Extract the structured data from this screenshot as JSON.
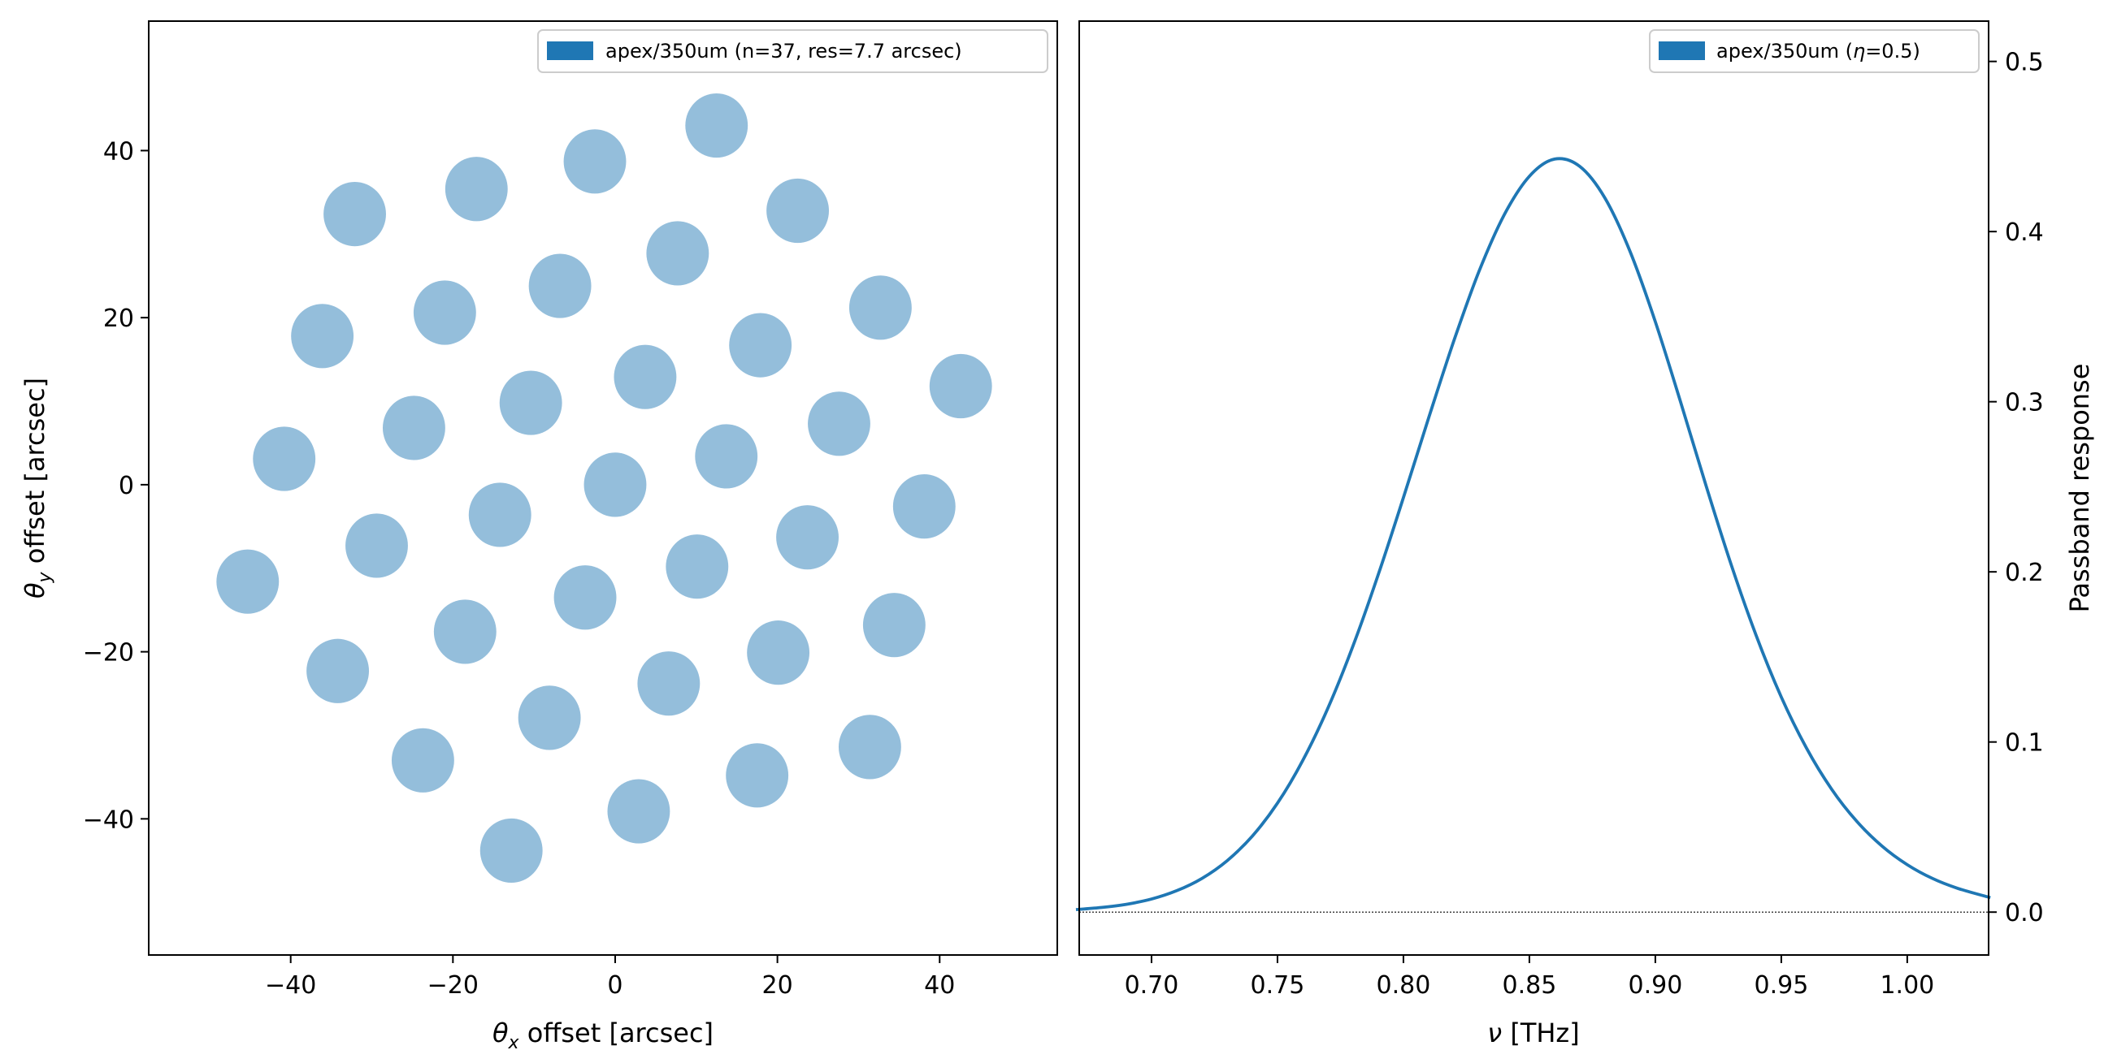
{
  "colors": {
    "series": "#1f77b4",
    "detector_fill": "#1f77b4",
    "detector_alpha": 0.48,
    "frame": "#000000"
  },
  "chart_data": [
    {
      "type": "scatter",
      "xlabel_prefix": "θ",
      "xlabel_sub": "x",
      "xlabel_suffix": " offset [arcsec]",
      "ylabel_prefix": "θ",
      "ylabel_sub": "y",
      "ylabel_suffix": " offset [arcsec]",
      "xlim": [
        -57.5,
        54.5
      ],
      "ylim": [
        -56.3,
        55.5
      ],
      "xticks": [
        -40,
        -20,
        0,
        20,
        40
      ],
      "yticks": [
        -40,
        -20,
        0,
        20,
        40
      ],
      "xtick_labels": [
        "−40",
        "−20",
        "0",
        "20",
        "40"
      ],
      "ytick_labels": [
        "−40",
        "−20",
        "0",
        "20",
        "40"
      ],
      "marker_diameter_arcsec": 7.7,
      "legend": {
        "label": "apex/350um (n=37, res=7.7 arcsec)",
        "placement": "top-right"
      },
      "points": [
        [
          12.5,
          43.0
        ],
        [
          -2.5,
          38.7
        ],
        [
          -17.1,
          35.4
        ],
        [
          -32.1,
          32.4
        ],
        [
          22.5,
          32.8
        ],
        [
          7.7,
          27.7
        ],
        [
          -6.8,
          23.8
        ],
        [
          -21.0,
          20.6
        ],
        [
          -36.1,
          17.8
        ],
        [
          32.7,
          21.2
        ],
        [
          17.9,
          16.7
        ],
        [
          3.7,
          12.9
        ],
        [
          -10.4,
          9.8
        ],
        [
          -24.8,
          6.8
        ],
        [
          -40.8,
          3.1
        ],
        [
          42.6,
          11.8
        ],
        [
          27.6,
          7.3
        ],
        [
          13.7,
          3.4
        ],
        [
          0.0,
          0.0
        ],
        [
          -14.2,
          -3.6
        ],
        [
          -29.4,
          -7.3
        ],
        [
          -45.3,
          -11.6
        ],
        [
          38.1,
          -2.6
        ],
        [
          23.7,
          -6.3
        ],
        [
          10.1,
          -9.8
        ],
        [
          -3.7,
          -13.5
        ],
        [
          -18.5,
          -17.6
        ],
        [
          -34.2,
          -22.3
        ],
        [
          34.4,
          -16.8
        ],
        [
          20.1,
          -20.1
        ],
        [
          6.6,
          -23.8
        ],
        [
          -8.1,
          -27.9
        ],
        [
          -23.7,
          -33.0
        ],
        [
          31.4,
          -31.4
        ],
        [
          17.5,
          -34.8
        ],
        [
          2.9,
          -39.1
        ],
        [
          -12.8,
          -43.8
        ]
      ]
    },
    {
      "type": "line",
      "xlabel_prefix": "ν",
      "xlabel_suffix": " [THz]",
      "ylabel": "Passband response",
      "xlim": [
        0.6713,
        1.0323
      ],
      "ylim": [
        -0.0252,
        0.5237
      ],
      "xticks": [
        0.7,
        0.75,
        0.8,
        0.85,
        0.9,
        0.95,
        1.0
      ],
      "xtick_labels": [
        "0.70",
        "0.75",
        "0.80",
        "0.85",
        "0.90",
        "0.95",
        "1.00"
      ],
      "yticks": [
        0.0,
        0.1,
        0.2,
        0.3,
        0.4,
        0.5
      ],
      "ytick_labels": [
        "0.0",
        "0.1",
        "0.2",
        "0.3",
        "0.4",
        "0.5"
      ],
      "legend": {
        "label_prefix": "apex/350um (",
        "label_var": "η",
        "label_suffix": "=0.5)",
        "placement": "top-right"
      },
      "zero_line": true,
      "series": [
        {
          "x": [
            0.67,
            0.68,
            0.69,
            0.7,
            0.71,
            0.72,
            0.73,
            0.74,
            0.75,
            0.76,
            0.77,
            0.78,
            0.79,
            0.8,
            0.81,
            0.82,
            0.83,
            0.84,
            0.85,
            0.86,
            0.87,
            0.88,
            0.89,
            0.9,
            0.91,
            0.92,
            0.93,
            0.94,
            0.95,
            0.96,
            0.97,
            0.98,
            0.99,
            1.0,
            1.01,
            1.02,
            1.033
          ],
          "y": [
            0.0015,
            0.0027,
            0.0046,
            0.0077,
            0.0126,
            0.0198,
            0.0302,
            0.0447,
            0.064,
            0.089,
            0.1198,
            0.1565,
            0.1983,
            0.2436,
            0.2904,
            0.3357,
            0.3766,
            0.4098,
            0.4325,
            0.4426,
            0.4383,
            0.4197,
            0.3882,
            0.347,
            0.3,
            0.2513,
            0.2047,
            0.1627,
            0.1264,
            0.0964,
            0.0722,
            0.0533,
            0.0388,
            0.0279,
            0.0198,
            0.014,
            0.0085
          ]
        }
      ]
    }
  ]
}
